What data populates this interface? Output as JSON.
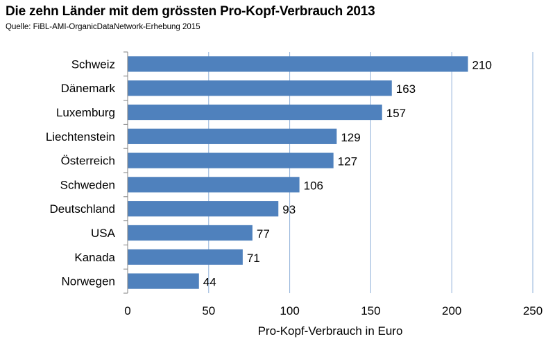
{
  "title": "Die zehn Länder mit dem grössten Pro-Kopf-Verbrauch 2013",
  "source": "Quelle: FiBL-AMI-OrganicDataNetwork-Erhebung 2015",
  "colors": {
    "bar": "#4f81bd",
    "grid": "#8fb0d9",
    "axis": "#808080"
  },
  "chart_data": {
    "type": "bar",
    "orientation": "horizontal",
    "title": "Die zehn Länder mit dem grössten Pro-Kopf-Verbrauch 2013",
    "subtitle": "Quelle: FiBL-AMI-OrganicDataNetwork-Erhebung 2015",
    "categories": [
      "Schweiz",
      "Dänemark",
      "Luxemburg",
      "Liechtenstein",
      "Österreich",
      "Schweden",
      "Deutschland",
      "USA",
      "Kanada",
      "Norwegen"
    ],
    "values": [
      210,
      163,
      157,
      129,
      127,
      106,
      93,
      77,
      71,
      44
    ],
    "xlabel": "Pro-Kopf-Verbrauch in Euro",
    "ylabel": "",
    "xlim": [
      0,
      250
    ],
    "xticks": [
      "0",
      "50",
      "100",
      "150",
      "200",
      "250"
    ],
    "grid": "vertical",
    "data_labels": true,
    "legend": "none"
  }
}
